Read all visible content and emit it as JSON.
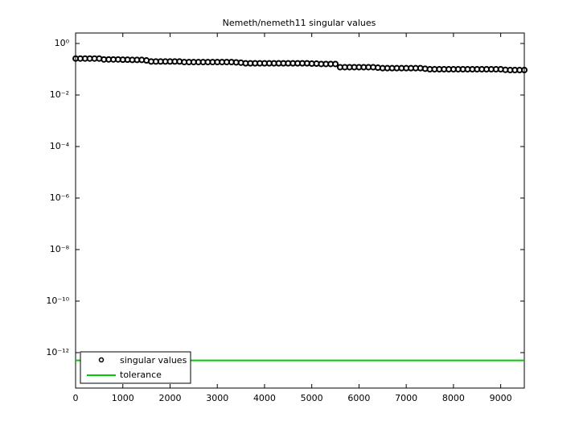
{
  "chart_data": {
    "type": "scatter",
    "title": "Nemeth/nemeth11 singular values",
    "xlim": [
      0,
      9500
    ],
    "xticks": [
      0,
      1000,
      2000,
      3000,
      4000,
      5000,
      6000,
      7000,
      8000,
      9000
    ],
    "ylim": [
      4.2e-14,
      2.55
    ],
    "log_y": true,
    "yticks": [
      {
        "value": 1,
        "label": "10⁰"
      },
      {
        "value": 0.01,
        "label": "10⁻²"
      },
      {
        "value": 0.0001,
        "label": "10⁻⁴"
      },
      {
        "value": 1e-06,
        "label": "10⁻⁶"
      },
      {
        "value": 1e-08,
        "label": "10⁻⁸"
      },
      {
        "value": 1e-10,
        "label": "10⁻¹⁰"
      },
      {
        "value": 1e-12,
        "label": "10⁻¹²"
      }
    ],
    "legend": "lower left",
    "series": [
      {
        "name": "singular values",
        "color": "#000000",
        "marker": "circle",
        "x": [
          1,
          100,
          200,
          300,
          400,
          500,
          600,
          700,
          800,
          900,
          1000,
          1100,
          1200,
          1300,
          1400,
          1500,
          1600,
          1700,
          1800,
          1900,
          2000,
          2100,
          2200,
          2300,
          2400,
          2500,
          2600,
          2700,
          2800,
          2900,
          3000,
          3100,
          3200,
          3300,
          3400,
          3500,
          3600,
          3700,
          3800,
          3900,
          4000,
          4100,
          4200,
          4300,
          4400,
          4500,
          4600,
          4700,
          4800,
          4900,
          5000,
          5100,
          5200,
          5300,
          5400,
          5500,
          5600,
          5700,
          5800,
          5900,
          6000,
          6100,
          6200,
          6300,
          6400,
          6500,
          6600,
          6700,
          6800,
          6900,
          7000,
          7100,
          7200,
          7300,
          7400,
          7500,
          7600,
          7700,
          7800,
          7900,
          8000,
          8100,
          8200,
          8300,
          8400,
          8500,
          8600,
          8700,
          8800,
          8900,
          9000,
          9100,
          9200,
          9300,
          9400,
          9500
        ],
        "values": [
          0.26,
          0.26,
          0.26,
          0.26,
          0.26,
          0.26,
          0.24,
          0.24,
          0.24,
          0.24,
          0.235,
          0.235,
          0.23,
          0.23,
          0.23,
          0.22,
          0.2,
          0.2,
          0.2,
          0.2,
          0.2,
          0.2,
          0.2,
          0.19,
          0.19,
          0.19,
          0.19,
          0.19,
          0.19,
          0.19,
          0.19,
          0.19,
          0.19,
          0.19,
          0.185,
          0.18,
          0.17,
          0.17,
          0.17,
          0.17,
          0.17,
          0.17,
          0.17,
          0.17,
          0.17,
          0.17,
          0.17,
          0.17,
          0.17,
          0.17,
          0.165,
          0.165,
          0.16,
          0.16,
          0.16,
          0.16,
          0.12,
          0.12,
          0.12,
          0.12,
          0.12,
          0.12,
          0.12,
          0.12,
          0.115,
          0.11,
          0.11,
          0.11,
          0.11,
          0.11,
          0.11,
          0.11,
          0.11,
          0.11,
          0.105,
          0.1,
          0.1,
          0.1,
          0.1,
          0.1,
          0.1,
          0.1,
          0.1,
          0.1,
          0.1,
          0.1,
          0.1,
          0.1,
          0.1,
          0.1,
          0.1,
          0.095,
          0.093,
          0.093,
          0.093,
          0.093
        ]
      },
      {
        "name": "tolerance",
        "color": "#00cc00",
        "marker": "line",
        "x": [
          0,
          9500
        ],
        "values": [
          5e-13,
          5e-13
        ]
      }
    ]
  }
}
